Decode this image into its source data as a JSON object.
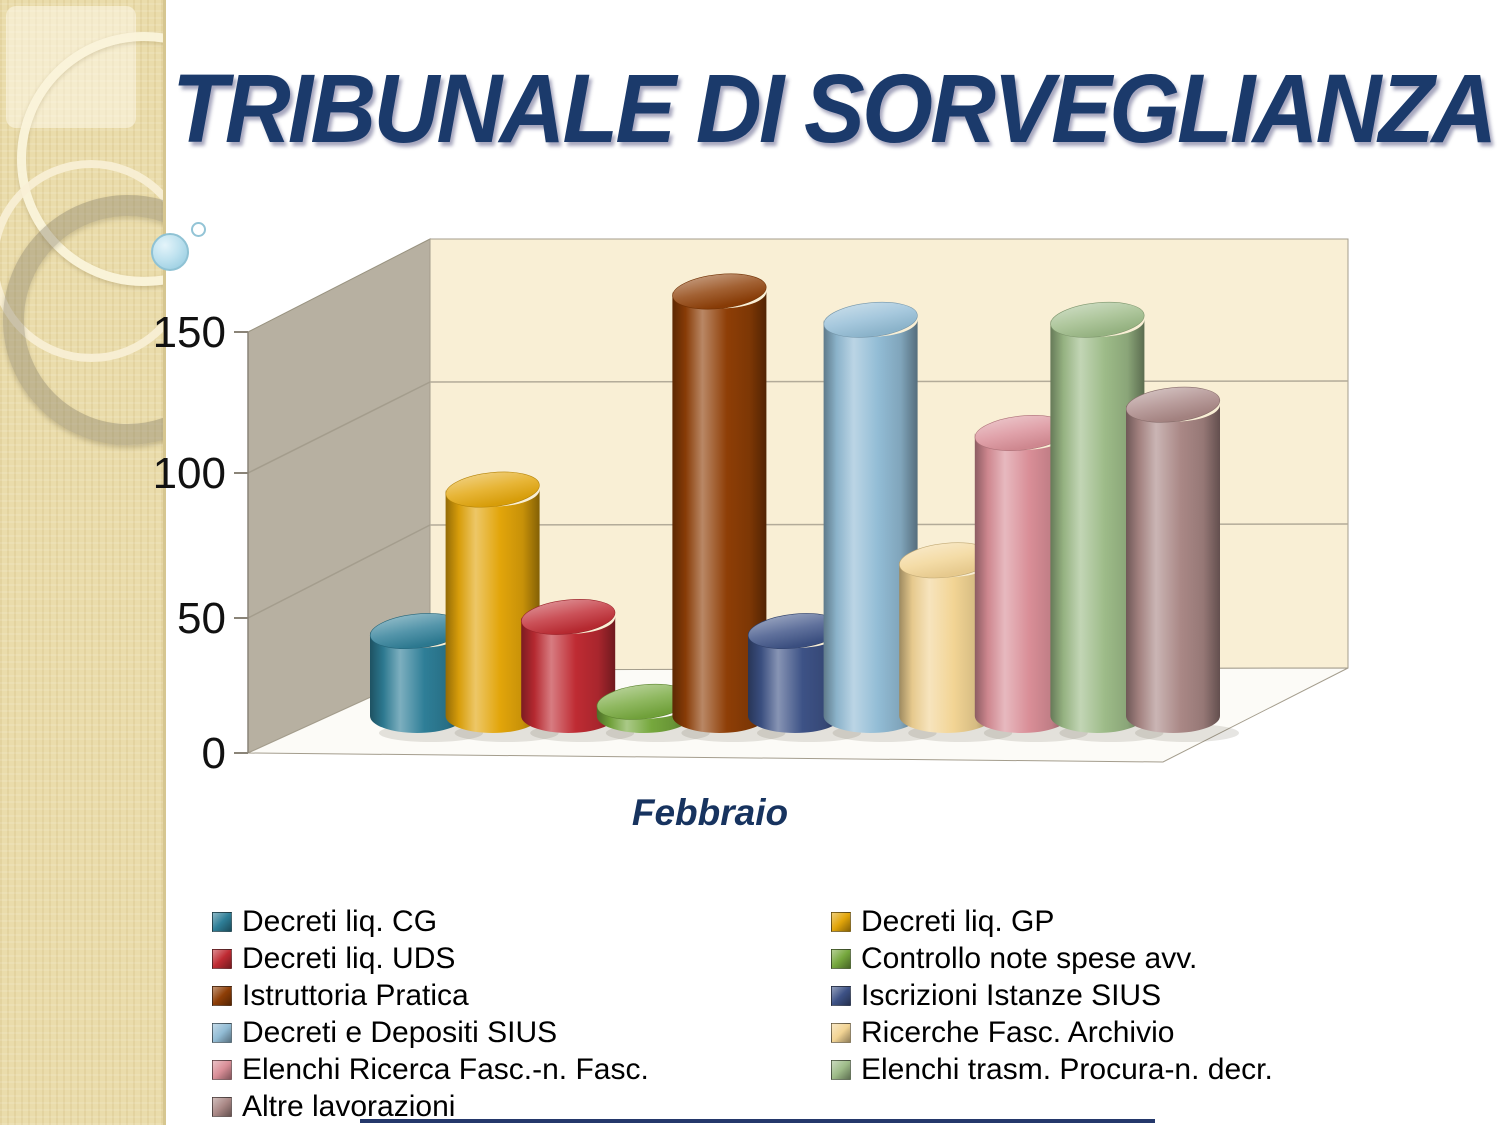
{
  "slide": {
    "title": "TRIBUNALE DI SORVEGLIANZA"
  },
  "chart_data": {
    "type": "bar",
    "subtype": "3d-cylinder",
    "title": "",
    "categories": [
      "Febbraio"
    ],
    "series": [
      {
        "name": "Decreti liq. CG",
        "color": "#2e7e97",
        "values": [
          30
        ]
      },
      {
        "name": "Decreti liq. GP",
        "color": "#e2a50a",
        "values": [
          80
        ]
      },
      {
        "name": "Decreti liq. UDS",
        "color": "#bf2b33",
        "values": [
          35
        ]
      },
      {
        "name": "Controllo note spese avv.",
        "color": "#76a83d",
        "values": [
          5
        ]
      },
      {
        "name": "Istruttoria Pratica",
        "color": "#8e3e06",
        "values": [
          150
        ]
      },
      {
        "name": "Iscrizioni Istanze SIUS",
        "color": "#3d5286",
        "values": [
          30
        ]
      },
      {
        "name": "Decreti e Depositi SIUS",
        "color": "#92bcd5",
        "values": [
          140
        ]
      },
      {
        "name": "Ricerche Fasc. Archivio",
        "color": "#f2d494",
        "values": [
          55
        ]
      },
      {
        "name": "Elenchi Ricerca Fasc.-n. Fasc.",
        "color": "#d98e97",
        "values": [
          100
        ]
      },
      {
        "name": "Elenchi trasm. Procura-n. decr.",
        "color": "#9dbb88",
        "values": [
          140
        ]
      },
      {
        "name": "Altre lavorazioni",
        "color": "#aa8886",
        "values": [
          110
        ]
      }
    ],
    "ylim": [
      0,
      150
    ],
    "yticks": [
      0,
      50,
      100,
      150
    ],
    "grid": true,
    "legend_position": "bottom-two-columns",
    "wall_color": "#f9efd5",
    "side_wall_color": "#b7b0a1",
    "accent_color": "#1b3a6b"
  }
}
